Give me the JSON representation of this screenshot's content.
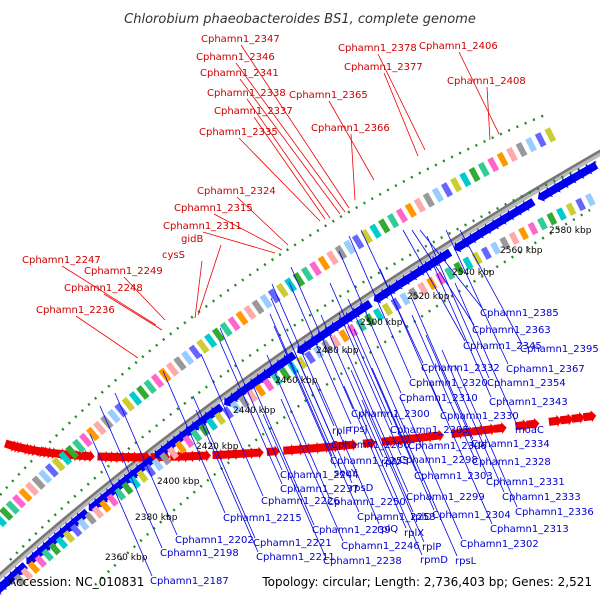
{
  "title": "Chlorobium phaeobacteroides BS1, complete genome",
  "footer": {
    "accession": "Accession: NC_010831",
    "summary": "Topology: circular; Length: 2,736,403 bp; Genes: 2,521"
  },
  "colors": {
    "forward": "#ee0000",
    "reverse": "#0000ee",
    "backbone": "#888888",
    "dots": "#228b22"
  },
  "ticks": [
    {
      "label": "2360 kbp",
      "bp": 2360000
    },
    {
      "label": "2380 kbp",
      "bp": 2380000
    },
    {
      "label": "2400 kbp",
      "bp": 2400000
    },
    {
      "label": "2420 kbp",
      "bp": 2420000
    },
    {
      "label": "2440 kbp",
      "bp": 2440000
    },
    {
      "label": "2460 kbp",
      "bp": 2460000
    },
    {
      "label": "2480 kbp",
      "bp": 2480000
    },
    {
      "label": "2500 kbp",
      "bp": 2500000
    },
    {
      "label": "2520 kbp",
      "bp": 2520000
    },
    {
      "label": "2540 kbp",
      "bp": 2540000
    },
    {
      "label": "2560 kbp",
      "bp": 2560000
    },
    {
      "label": "2580 kbp",
      "bp": 2580000
    }
  ],
  "forward_labels": [
    "Cphamn1_2347",
    "Cphamn1_2346",
    "Cphamn1_2341",
    "Cphamn1_2338",
    "Cphamn1_2337",
    "Cphamn1_2335",
    "Cphamn1_2378",
    "Cphamn1_2377",
    "Cphamn1_2406",
    "Cphamn1_2408",
    "Cphamn1_2365",
    "Cphamn1_2366",
    "Cphamn1_2324",
    "Cphamn1_2315",
    "Cphamn1_2311",
    "gidB",
    "cysS",
    "Cphamn1_2247",
    "Cphamn1_2249",
    "Cphamn1_2248",
    "Cphamn1_2236"
  ],
  "reverse_labels": [
    "Cphamn1_2385",
    "Cphamn1_2363",
    "Cphamn1_2345",
    "Cphamn1_2395",
    "Cphamn1_2332",
    "Cphamn1_2367",
    "Cphamn1_2320",
    "Cphamn1_2354",
    "Cphamn1_2310",
    "Cphamn1_2343",
    "Cphamn1_2300",
    "Cphamn1_2330",
    "rplF",
    "rpsJ",
    "Cphamn1_2305",
    "moaC",
    "Cphamn1_2266",
    "Cphamn1_2306",
    "Cphamn1_2334",
    "Cphamn1_2255",
    "rplV",
    "Cphamn1_2298",
    "Cphamn1_2328",
    "Cphamn1_2244",
    "secY",
    "Cphamn1_2303",
    "Cphamn1_2237",
    "rpsD",
    "Cphamn1_2331",
    "Cphamn1_2226",
    "Cphamn1_2250",
    "Cphamn1_2299",
    "Cphamn1_2333",
    "Cphamn1_2215",
    "Cphamn1_2253",
    "rplD",
    "Cphamn1_2304",
    "Cphamn1_2336",
    "Cphamn1_2239",
    "rplQ",
    "rplX",
    "Cphamn1_2313",
    "Cphamn1_2202",
    "Cphamn1_2221",
    "Cphamn1_2246",
    "rplP",
    "Cphamn1_2302",
    "Cphamn1_2198",
    "Cphamn1_2211",
    "Cphamn1_2238",
    "rpmD",
    "rpsL",
    "Cphamn1_2187"
  ]
}
